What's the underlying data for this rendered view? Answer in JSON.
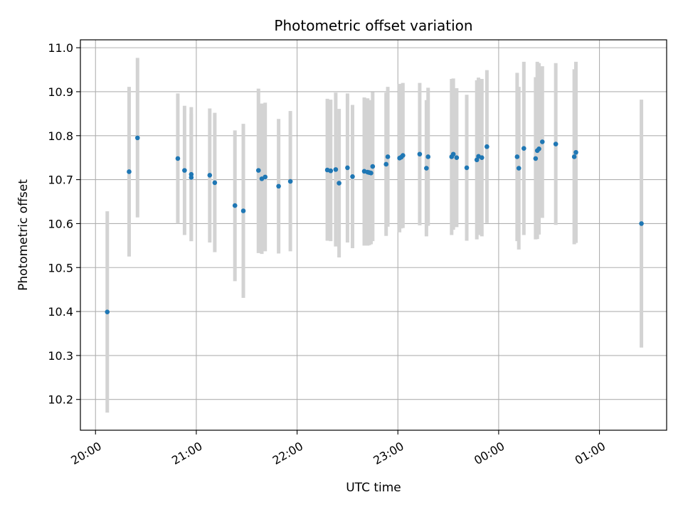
{
  "chart_data": {
    "type": "scatter",
    "title": "Photometric offset variation",
    "xlabel": "UTC time",
    "ylabel": "Photometric offset",
    "x_axis": "time",
    "xlim": [
      "20:00",
      "01:40"
    ],
    "ylim": [
      10.13,
      11.018
    ],
    "x_ticks": [
      "20:00",
      "21:00",
      "22:00",
      "23:00",
      "00:00",
      "01:00"
    ],
    "y_ticks": [
      10.2,
      10.3,
      10.4,
      10.5,
      10.6,
      10.7,
      10.8,
      10.9,
      11.0
    ],
    "y_tick_labels": [
      "10.2",
      "10.3",
      "10.4",
      "10.5",
      "10.6",
      "10.7",
      "10.8",
      "10.9",
      "11.0"
    ],
    "grid": true,
    "colors": {
      "point": "#1f77b4",
      "errorbar": "#d3d3d3",
      "grid": "#b0b0b0"
    },
    "series": [
      {
        "points": [
          {
            "x": "20:07",
            "y": 10.399,
            "low": 10.17,
            "high": 10.628
          },
          {
            "x": "20:20",
            "y": 10.718,
            "low": 10.525,
            "high": 10.911
          },
          {
            "x": "20:25",
            "y": 10.795,
            "low": 10.614,
            "high": 10.977
          },
          {
            "x": "20:49",
            "y": 10.748,
            "low": 10.6,
            "high": 10.896
          },
          {
            "x": "20:53",
            "y": 10.721,
            "low": 10.574,
            "high": 10.868
          },
          {
            "x": "20:57",
            "y": 10.712,
            "low": 10.56,
            "high": 10.865
          },
          {
            "x": "20:57",
            "y": 10.705,
            "low": 10.56,
            "high": 10.85
          },
          {
            "x": "21:08",
            "y": 10.71,
            "low": 10.557,
            "high": 10.862
          },
          {
            "x": "21:11",
            "y": 10.693,
            "low": 10.535,
            "high": 10.852
          },
          {
            "x": "21:23",
            "y": 10.641,
            "low": 10.469,
            "high": 10.812
          },
          {
            "x": "21:28",
            "y": 10.629,
            "low": 10.431,
            "high": 10.827
          },
          {
            "x": "21:37",
            "y": 10.721,
            "low": 10.533,
            "high": 10.907
          },
          {
            "x": "21:39",
            "y": 10.702,
            "low": 10.531,
            "high": 10.873
          },
          {
            "x": "21:41",
            "y": 10.706,
            "low": 10.537,
            "high": 10.875
          },
          {
            "x": "21:49",
            "y": 10.685,
            "low": 10.532,
            "high": 10.838
          },
          {
            "x": "21:56",
            "y": 10.696,
            "low": 10.537,
            "high": 10.856
          },
          {
            "x": "22:18",
            "y": 10.722,
            "low": 10.561,
            "high": 10.884
          },
          {
            "x": "22:20",
            "y": 10.72,
            "low": 10.56,
            "high": 10.882
          },
          {
            "x": "22:23",
            "y": 10.723,
            "low": 10.548,
            "high": 10.898
          },
          {
            "x": "22:25",
            "y": 10.692,
            "low": 10.523,
            "high": 10.861
          },
          {
            "x": "22:30",
            "y": 10.727,
            "low": 10.557,
            "high": 10.896
          },
          {
            "x": "22:33",
            "y": 10.707,
            "low": 10.544,
            "high": 10.87
          },
          {
            "x": "22:40",
            "y": 10.719,
            "low": 10.55,
            "high": 10.887
          },
          {
            "x": "22:42",
            "y": 10.717,
            "low": 10.55,
            "high": 10.885
          },
          {
            "x": "22:43",
            "y": 10.716,
            "low": 10.551,
            "high": 10.881
          },
          {
            "x": "22:44",
            "y": 10.715,
            "low": 10.553,
            "high": 10.877
          },
          {
            "x": "22:45",
            "y": 10.73,
            "low": 10.56,
            "high": 10.899
          },
          {
            "x": "22:53",
            "y": 10.735,
            "low": 10.572,
            "high": 10.898
          },
          {
            "x": "22:54",
            "y": 10.752,
            "low": 10.593,
            "high": 10.911
          },
          {
            "x": "23:01",
            "y": 10.749,
            "low": 10.58,
            "high": 10.918
          },
          {
            "x": "23:02",
            "y": 10.751,
            "low": 10.589,
            "high": 10.913
          },
          {
            "x": "23:03",
            "y": 10.755,
            "low": 10.59,
            "high": 10.92
          },
          {
            "x": "23:13",
            "y": 10.758,
            "low": 10.596,
            "high": 10.92
          },
          {
            "x": "23:17",
            "y": 10.726,
            "low": 10.571,
            "high": 10.881
          },
          {
            "x": "23:18",
            "y": 10.752,
            "low": 10.595,
            "high": 10.909
          },
          {
            "x": "23:32",
            "y": 10.752,
            "low": 10.574,
            "high": 10.929
          },
          {
            "x": "23:33",
            "y": 10.758,
            "low": 10.586,
            "high": 10.93
          },
          {
            "x": "23:35",
            "y": 10.75,
            "low": 10.592,
            "high": 10.908
          },
          {
            "x": "23:41",
            "y": 10.727,
            "low": 10.561,
            "high": 10.893
          },
          {
            "x": "23:47",
            "y": 10.745,
            "low": 10.564,
            "high": 10.926
          },
          {
            "x": "23:48",
            "y": 10.753,
            "low": 10.574,
            "high": 10.932
          },
          {
            "x": "23:50",
            "y": 10.75,
            "low": 10.571,
            "high": 10.929
          },
          {
            "x": "23:53",
            "y": 10.775,
            "low": 10.601,
            "high": 10.949
          },
          {
            "x": "00:11",
            "y": 10.752,
            "low": 10.56,
            "high": 10.943
          },
          {
            "x": "00:12",
            "y": 10.726,
            "low": 10.541,
            "high": 10.911
          },
          {
            "x": "00:15",
            "y": 10.771,
            "low": 10.574,
            "high": 10.968
          },
          {
            "x": "00:22",
            "y": 10.748,
            "low": 10.564,
            "high": 10.933
          },
          {
            "x": "00:23",
            "y": 10.766,
            "low": 10.565,
            "high": 10.968
          },
          {
            "x": "00:24",
            "y": 10.77,
            "low": 10.575,
            "high": 10.965
          },
          {
            "x": "00:26",
            "y": 10.786,
            "low": 10.613,
            "high": 10.958
          },
          {
            "x": "00:34",
            "y": 10.781,
            "low": 10.597,
            "high": 10.965
          },
          {
            "x": "00:45",
            "y": 10.752,
            "low": 10.553,
            "high": 10.951
          },
          {
            "x": "00:46",
            "y": 10.762,
            "low": 10.556,
            "high": 10.968
          },
          {
            "x": "01:25",
            "y": 10.6,
            "low": 10.318,
            "high": 10.882
          }
        ]
      }
    ]
  }
}
